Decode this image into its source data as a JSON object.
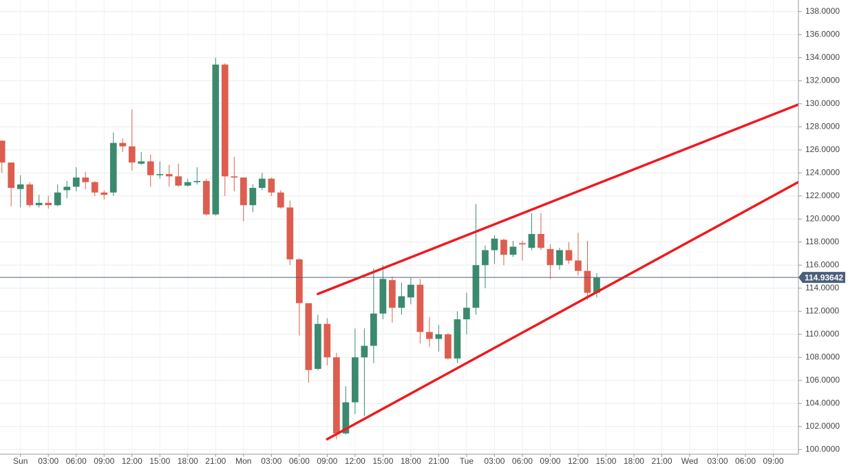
{
  "chart_data": {
    "type": "candlestick",
    "x": [
      -2,
      -1,
      0,
      1,
      2,
      3,
      4,
      5,
      6,
      7,
      8,
      9,
      10,
      11,
      12,
      13,
      14,
      15,
      16,
      17,
      18,
      19,
      20,
      21,
      22,
      23,
      24,
      25,
      26,
      27,
      28,
      29,
      30,
      31,
      32,
      33,
      34,
      35,
      36,
      37,
      38,
      39,
      40,
      41,
      42,
      43,
      44,
      45,
      46,
      47,
      48,
      49,
      50,
      51,
      52,
      53,
      54,
      55,
      56,
      57,
      58,
      59,
      60,
      61,
      62
    ],
    "open": [
      126.8,
      124.9,
      122.6,
      123.0,
      121.2,
      121.4,
      121.2,
      122.5,
      122.8,
      123.6,
      123.2,
      122.3,
      122.3,
      126.6,
      126.3,
      124.8,
      125.0,
      123.8,
      123.9,
      123.7,
      122.9,
      123.2,
      123.3,
      120.4,
      133.4,
      123.7,
      123.6,
      121.2,
      122.7,
      123.5,
      122.3,
      121.0,
      116.5,
      112.7,
      107.0,
      110.9,
      108.0,
      101.4,
      104.1,
      108.0,
      109.0,
      111.8,
      114.7,
      112.3,
      113.2,
      114.3,
      110.2,
      109.6,
      110.0,
      107.9,
      111.3,
      112.3,
      116.0,
      117.3,
      118.2,
      116.9,
      117.9,
      117.5,
      118.7,
      117.4,
      116.0,
      117.3,
      116.4,
      115.5,
      113.6
    ],
    "high": [
      126.8,
      124.9,
      123.8,
      123.2,
      122.1,
      122.0,
      123.0,
      123.3,
      124.5,
      124.1,
      123.3,
      122.5,
      127.5,
      127.0,
      129.5,
      125.8,
      125.6,
      125.0,
      124.7,
      124.8,
      123.5,
      124.5,
      123.5,
      134.0,
      133.5,
      125.4,
      123.6,
      123.0,
      124.0,
      123.6,
      122.5,
      121.6,
      116.6,
      112.7,
      111.7,
      111.4,
      108.4,
      105.5,
      110.5,
      110.5,
      115.7,
      116.0,
      115.0,
      114.5,
      114.9,
      114.8,
      111.5,
      110.8,
      110.1,
      112.0,
      113.6,
      121.3,
      117.7,
      118.6,
      118.3,
      118.1,
      118.1,
      120.5,
      120.5,
      117.8,
      117.5,
      118.0,
      118.8,
      118.1,
      115.3
    ],
    "low": [
      124.0,
      121.1,
      121.0,
      121.0,
      121.0,
      120.9,
      121.1,
      121.8,
      122.4,
      122.6,
      122.0,
      121.7,
      122.0,
      125.8,
      124.2,
      124.7,
      122.8,
      123.5,
      122.8,
      122.8,
      122.8,
      123.0,
      120.3,
      120.3,
      122.0,
      122.4,
      119.8,
      120.6,
      122.5,
      122.0,
      120.9,
      116.0,
      109.9,
      105.8,
      106.9,
      107.3,
      100.9,
      101.3,
      103.1,
      102.9,
      107.5,
      111.3,
      111.0,
      111.7,
      112.6,
      109.2,
      108.9,
      108.5,
      107.8,
      107.5,
      110.0,
      111.7,
      114.0,
      116.1,
      116.0,
      116.7,
      116.4,
      117.3,
      117.3,
      114.8,
      115.6,
      116.1,
      115.1,
      113.0,
      113.2
    ],
    "close": [
      124.9,
      122.7,
      123.0,
      121.2,
      121.4,
      121.2,
      122.3,
      122.8,
      123.6,
      123.2,
      122.3,
      122.1,
      126.6,
      126.3,
      124.9,
      125.0,
      123.8,
      123.9,
      123.7,
      122.9,
      123.2,
      123.3,
      120.4,
      133.4,
      123.7,
      123.6,
      121.2,
      122.7,
      123.5,
      122.3,
      121.0,
      116.5,
      112.7,
      106.9,
      110.9,
      108.0,
      101.4,
      104.1,
      108.0,
      109.0,
      111.8,
      114.8,
      112.3,
      113.3,
      114.3,
      110.2,
      109.6,
      110.0,
      107.9,
      111.3,
      112.3,
      116.0,
      117.3,
      118.3,
      116.9,
      117.6,
      117.8,
      118.7,
      117.5,
      116.0,
      117.3,
      116.4,
      115.5,
      113.6,
      114.9
    ],
    "up_color": "#3b8a6e",
    "down_color": "#dd5e4e",
    "trendlines": [
      {
        "x": [
          32,
          83.9
        ],
        "y": [
          113.5,
          130.0
        ],
        "color": "#f0191e"
      },
      {
        "x": [
          33,
          83.9
        ],
        "y": [
          100.9,
          123.3
        ],
        "color": "#f0191e"
      }
    ],
    "last_price": 114.93642,
    "last_price_color": "#4a5f7a",
    "xlim": [
      -2.2,
      83.7
    ],
    "ylim": [
      99.6,
      139
    ],
    "xticks": [
      {
        "value": 0,
        "label": "Sun"
      },
      {
        "value": 3,
        "label": "03:00"
      },
      {
        "value": 6,
        "label": "06:00"
      },
      {
        "value": 9,
        "label": "09:00"
      },
      {
        "value": 12,
        "label": "12:00"
      },
      {
        "value": 15,
        "label": "15:00"
      },
      {
        "value": 18,
        "label": "18:00"
      },
      {
        "value": 21,
        "label": "21:00"
      },
      {
        "value": 24,
        "label": "Mon"
      },
      {
        "value": 27,
        "label": "03:00"
      },
      {
        "value": 30,
        "label": "06:00"
      },
      {
        "value": 33,
        "label": "09:00"
      },
      {
        "value": 36,
        "label": "12:00"
      },
      {
        "value": 39,
        "label": "15:00"
      },
      {
        "value": 42,
        "label": "18:00"
      },
      {
        "value": 45,
        "label": "21:00"
      },
      {
        "value": 48,
        "label": "Tue"
      },
      {
        "value": 51,
        "label": "03:00"
      },
      {
        "value": 54,
        "label": "06:00"
      },
      {
        "value": 57,
        "label": "09:00"
      },
      {
        "value": 60,
        "label": "12:00"
      },
      {
        "value": 63,
        "label": "15:00"
      },
      {
        "value": 66,
        "label": "18:00"
      },
      {
        "value": 69,
        "label": "21:00"
      },
      {
        "value": 72,
        "label": "Wed"
      },
      {
        "value": 75,
        "label": "03:00"
      },
      {
        "value": 78,
        "label": "06:00"
      },
      {
        "value": 81,
        "label": "09:00"
      }
    ],
    "yticks": [
      {
        "value": 100,
        "label": "100.0000"
      },
      {
        "value": 102,
        "label": "102.0000"
      },
      {
        "value": 104,
        "label": "104.0000"
      },
      {
        "value": 106,
        "label": "106.0000"
      },
      {
        "value": 108,
        "label": "108.0000"
      },
      {
        "value": 110,
        "label": "110.0000"
      },
      {
        "value": 112,
        "label": "112.0000"
      },
      {
        "value": 114,
        "label": "114.0000"
      },
      {
        "value": 116,
        "label": "116.0000"
      },
      {
        "value": 118,
        "label": "118.0000"
      },
      {
        "value": 120,
        "label": "120.0000"
      },
      {
        "value": 122,
        "label": "122.0000"
      },
      {
        "value": 124,
        "label": "124.0000"
      },
      {
        "value": 126,
        "label": "126.0000"
      },
      {
        "value": 128,
        "label": "128.0000"
      },
      {
        "value": 130,
        "label": "130.0000"
      },
      {
        "value": 132,
        "label": "132.0000"
      },
      {
        "value": 134,
        "label": "134.0000"
      },
      {
        "value": 136,
        "label": "136.0000"
      },
      {
        "value": 138,
        "label": "138.0000"
      }
    ],
    "grid": true
  }
}
